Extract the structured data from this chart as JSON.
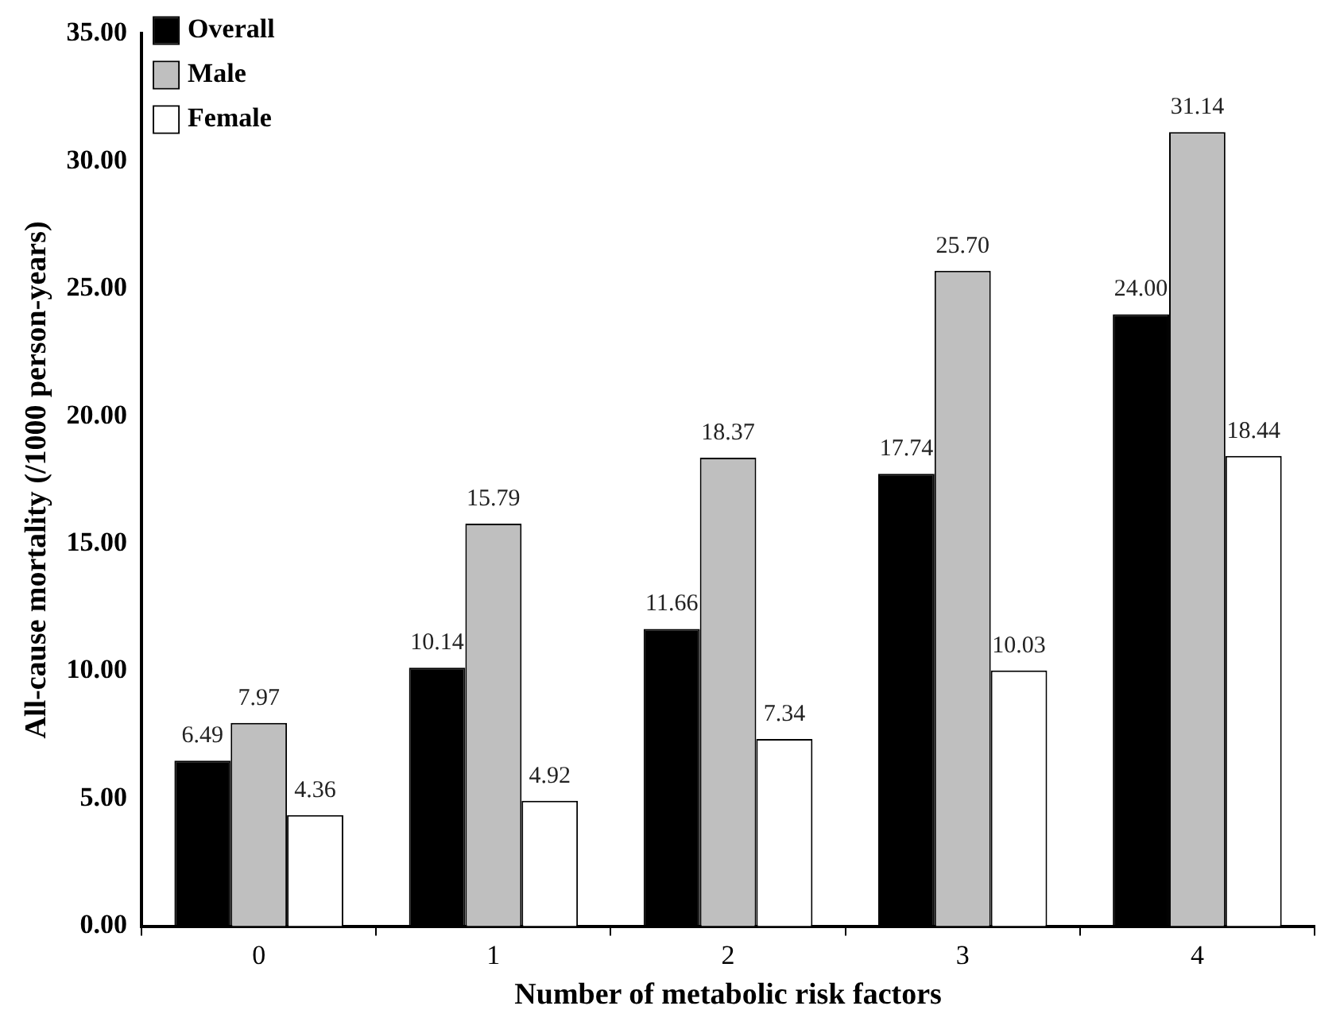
{
  "chart_data": {
    "type": "bar",
    "xlabel": "Number of metabolic risk factors",
    "ylabel": "All-cause mortality (/1000 person-years)",
    "categories": [
      "0",
      "1",
      "2",
      "3",
      "4"
    ],
    "series": [
      {
        "name": "Overall",
        "color": "#000000",
        "values": [
          6.49,
          10.14,
          11.66,
          17.74,
          24.0
        ],
        "value_labels": [
          "6.49",
          "10.14",
          "11.66",
          "17.74",
          "24.00"
        ]
      },
      {
        "name": "Male",
        "color": "#bfbfbf",
        "values": [
          7.97,
          15.79,
          18.37,
          25.7,
          31.14
        ],
        "value_labels": [
          "7.97",
          "15.79",
          "18.37",
          "25.70",
          "31.14"
        ]
      },
      {
        "name": "Female",
        "color": "#ffffff",
        "values": [
          4.36,
          4.92,
          7.34,
          10.03,
          18.44
        ],
        "value_labels": [
          "4.36",
          "4.92",
          "7.34",
          "10.03",
          "18.44"
        ]
      }
    ],
    "ylim": [
      0,
      35
    ],
    "yticks": [
      {
        "value": 0,
        "label": "0.00"
      },
      {
        "value": 5,
        "label": "5.00"
      },
      {
        "value": 10,
        "label": "10.00"
      },
      {
        "value": 15,
        "label": "15.00"
      },
      {
        "value": 20,
        "label": "20.00"
      },
      {
        "value": 25,
        "label": "25.00"
      },
      {
        "value": 30,
        "label": "30.00"
      },
      {
        "value": 35,
        "label": "35.00"
      }
    ],
    "grid": false,
    "legend": "top left"
  }
}
